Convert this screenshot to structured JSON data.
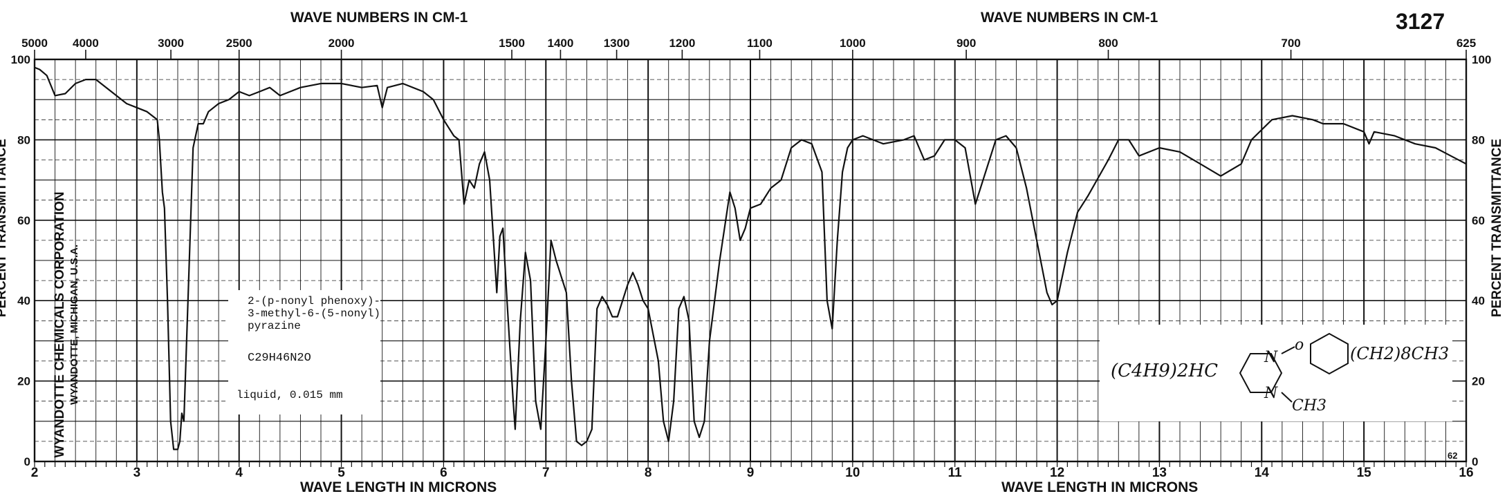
{
  "chart_data": {
    "type": "line",
    "chart_id": "3127",
    "top_label_left": "WAVE NUMBERS IN CM-1",
    "top_label_right": "WAVE NUMBERS IN CM-1",
    "bottom_label_left": "WAVE LENGTH IN MICRONS",
    "bottom_label_right": "WAVE LENGTH IN MICRONS",
    "ylabel_left": "PERCENT TRANSMITTANCE",
    "ylabel_right": "PERCENT TRANSMITTANCE",
    "xlim": [
      2,
      16
    ],
    "ylim": [
      0,
      100
    ],
    "x_ticks": [
      "2",
      "3",
      "4",
      "5",
      "6",
      "7",
      "8",
      "9",
      "10",
      "11",
      "12",
      "13",
      "14",
      "15",
      "16"
    ],
    "y_ticks_left": [
      "0",
      "20",
      "40",
      "60",
      "80",
      "100"
    ],
    "y_ticks_right": [
      "0",
      "20",
      "40",
      "60",
      "80",
      "100"
    ],
    "wavenumber_ticks": [
      {
        "label": "5000",
        "micron": 2.0
      },
      {
        "label": "4000",
        "micron": 2.5
      },
      {
        "label": "3000",
        "micron": 3.333
      },
      {
        "label": "2500",
        "micron": 4.0
      },
      {
        "label": "2000",
        "micron": 5.0
      },
      {
        "label": "1500",
        "micron": 6.667
      },
      {
        "label": "1400",
        "micron": 7.143
      },
      {
        "label": "1300",
        "micron": 7.692
      },
      {
        "label": "1200",
        "micron": 8.333
      },
      {
        "label": "1100",
        "micron": 9.091
      },
      {
        "label": "1000",
        "micron": 10.0
      },
      {
        "label": "900",
        "micron": 11.111
      },
      {
        "label": "800",
        "micron": 12.5
      },
      {
        "label": "700",
        "micron": 14.286
      },
      {
        "label": "625",
        "micron": 16.0
      }
    ],
    "corner_mark": "62",
    "sample": {
      "name_lines": [
        "2-(p-nonyl phenoxy)-",
        "3-methyl-6-(5-nonyl)",
        "pyrazine"
      ],
      "formula": "C29H46N2O",
      "conditions": "liquid, 0.015 mm"
    },
    "publisher_lines": [
      "WYANDOTTE CHEMICALS CORPORATION",
      "WYANDOTTE, MICHIGAN, U.S.A."
    ],
    "structure": {
      "left_group": "(C4H9)2HC",
      "ring_n_top": "N",
      "ring_n_bottom": "N",
      "ether_o": "o",
      "methyl": "CH3",
      "chain": "(CH2)8CH3"
    },
    "series": [
      {
        "points": [
          [
            2.0,
            98
          ],
          [
            2.05,
            97.5
          ],
          [
            2.12,
            96
          ],
          [
            2.2,
            91
          ],
          [
            2.3,
            91.5
          ],
          [
            2.4,
            94
          ],
          [
            2.5,
            95
          ],
          [
            2.6,
            95
          ],
          [
            2.7,
            93
          ],
          [
            2.8,
            91
          ],
          [
            2.9,
            89
          ],
          [
            3.0,
            88
          ],
          [
            3.1,
            87
          ],
          [
            3.15,
            86
          ],
          [
            3.2,
            85
          ],
          [
            3.22,
            80
          ],
          [
            3.25,
            67
          ],
          [
            3.27,
            63
          ],
          [
            3.3,
            40
          ],
          [
            3.33,
            10
          ],
          [
            3.36,
            3
          ],
          [
            3.4,
            3
          ],
          [
            3.42,
            5
          ],
          [
            3.44,
            12
          ],
          [
            3.46,
            10
          ],
          [
            3.5,
            40
          ],
          [
            3.55,
            78
          ],
          [
            3.6,
            84
          ],
          [
            3.65,
            84
          ],
          [
            3.7,
            87
          ],
          [
            3.8,
            89
          ],
          [
            3.9,
            90
          ],
          [
            4.0,
            92
          ],
          [
            4.1,
            91
          ],
          [
            4.2,
            92
          ],
          [
            4.3,
            93
          ],
          [
            4.4,
            91
          ],
          [
            4.6,
            93
          ],
          [
            4.8,
            94
          ],
          [
            5.0,
            94
          ],
          [
            5.2,
            93
          ],
          [
            5.35,
            93.5
          ],
          [
            5.4,
            88
          ],
          [
            5.45,
            93
          ],
          [
            5.6,
            94
          ],
          [
            5.8,
            92
          ],
          [
            5.9,
            90
          ],
          [
            6.0,
            85
          ],
          [
            6.1,
            81
          ],
          [
            6.15,
            80
          ],
          [
            6.2,
            64
          ],
          [
            6.25,
            70
          ],
          [
            6.3,
            68
          ],
          [
            6.35,
            74
          ],
          [
            6.4,
            77
          ],
          [
            6.45,
            70
          ],
          [
            6.5,
            50
          ],
          [
            6.52,
            42
          ],
          [
            6.55,
            56
          ],
          [
            6.58,
            58
          ],
          [
            6.62,
            40
          ],
          [
            6.68,
            15
          ],
          [
            6.7,
            8
          ],
          [
            6.75,
            35
          ],
          [
            6.8,
            52
          ],
          [
            6.85,
            45
          ],
          [
            6.9,
            15
          ],
          [
            6.95,
            8
          ],
          [
            7.0,
            30
          ],
          [
            7.05,
            55
          ],
          [
            7.1,
            50
          ],
          [
            7.15,
            46
          ],
          [
            7.2,
            42
          ],
          [
            7.25,
            20
          ],
          [
            7.3,
            5
          ],
          [
            7.35,
            4
          ],
          [
            7.4,
            5
          ],
          [
            7.45,
            8
          ],
          [
            7.5,
            38
          ],
          [
            7.55,
            41
          ],
          [
            7.6,
            39
          ],
          [
            7.65,
            36
          ],
          [
            7.7,
            36
          ],
          [
            7.75,
            40
          ],
          [
            7.8,
            44
          ],
          [
            7.85,
            47
          ],
          [
            7.9,
            44
          ],
          [
            7.95,
            40
          ],
          [
            8.0,
            38
          ],
          [
            8.1,
            25
          ],
          [
            8.15,
            10
          ],
          [
            8.2,
            5
          ],
          [
            8.25,
            15
          ],
          [
            8.3,
            38
          ],
          [
            8.35,
            41
          ],
          [
            8.4,
            35
          ],
          [
            8.45,
            10
          ],
          [
            8.5,
            6
          ],
          [
            8.55,
            10
          ],
          [
            8.6,
            30
          ],
          [
            8.7,
            50
          ],
          [
            8.8,
            67
          ],
          [
            8.85,
            63
          ],
          [
            8.9,
            55
          ],
          [
            8.95,
            58
          ],
          [
            9.0,
            63
          ],
          [
            9.1,
            64
          ],
          [
            9.2,
            68
          ],
          [
            9.3,
            70
          ],
          [
            9.4,
            78
          ],
          [
            9.5,
            80
          ],
          [
            9.6,
            79
          ],
          [
            9.7,
            72
          ],
          [
            9.75,
            40
          ],
          [
            9.8,
            33
          ],
          [
            9.85,
            55
          ],
          [
            9.9,
            72
          ],
          [
            9.95,
            78
          ],
          [
            10.0,
            80
          ],
          [
            10.1,
            81
          ],
          [
            10.2,
            80
          ],
          [
            10.3,
            79
          ],
          [
            10.5,
            80
          ],
          [
            10.6,
            81
          ],
          [
            10.7,
            75
          ],
          [
            10.8,
            76
          ],
          [
            10.9,
            80
          ],
          [
            11.0,
            80
          ],
          [
            11.1,
            78
          ],
          [
            11.2,
            64
          ],
          [
            11.3,
            72
          ],
          [
            11.4,
            80
          ],
          [
            11.5,
            81
          ],
          [
            11.6,
            78
          ],
          [
            11.7,
            68
          ],
          [
            11.8,
            55
          ],
          [
            11.9,
            42
          ],
          [
            11.95,
            39
          ],
          [
            12.0,
            40
          ],
          [
            12.1,
            52
          ],
          [
            12.2,
            62
          ],
          [
            12.3,
            66
          ],
          [
            12.5,
            75
          ],
          [
            12.6,
            80
          ],
          [
            12.7,
            80
          ],
          [
            12.8,
            76
          ],
          [
            13.0,
            78
          ],
          [
            13.2,
            77
          ],
          [
            13.4,
            74
          ],
          [
            13.6,
            71
          ],
          [
            13.8,
            74
          ],
          [
            13.9,
            80
          ],
          [
            14.1,
            85
          ],
          [
            14.3,
            86
          ],
          [
            14.5,
            85
          ],
          [
            14.6,
            84
          ],
          [
            14.8,
            84
          ],
          [
            15.0,
            82
          ],
          [
            15.05,
            79
          ],
          [
            15.1,
            82
          ],
          [
            15.3,
            81
          ],
          [
            15.5,
            79
          ],
          [
            15.7,
            78
          ],
          [
            15.85,
            76
          ],
          [
            16.0,
            74
          ]
        ]
      }
    ]
  }
}
